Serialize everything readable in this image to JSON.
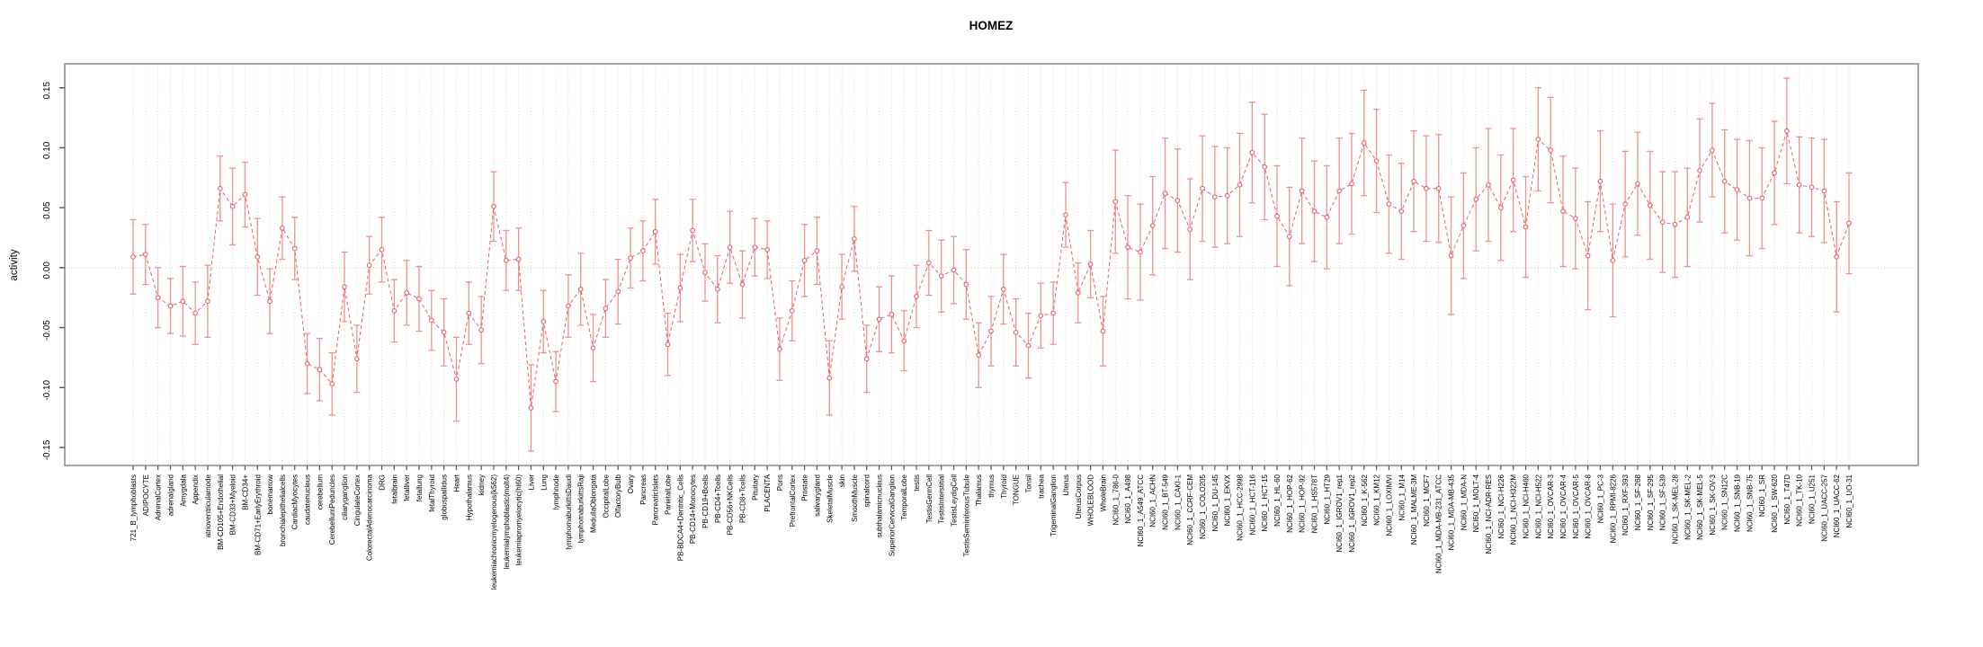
{
  "chart_data": {
    "type": "line",
    "title": "HOMEZ",
    "ylabel": "activity",
    "xlabel": "",
    "ylim": [
      -0.165,
      0.17
    ],
    "yticks": [
      -0.15,
      -0.1,
      -0.05,
      0.0,
      0.05,
      0.1,
      0.15
    ],
    "ytick_labels": [
      "-0.15",
      "-0.10",
      "-0.05",
      "0.00",
      "0.05",
      "0.10",
      "0.15"
    ],
    "grid": {
      "vertical_dotted_per_category": true,
      "dotted_zero_line": true
    },
    "legend": "none",
    "marker": "open-circle",
    "line_style": "dashed",
    "error_bars": true,
    "colors": {
      "series": "#ee5f5f",
      "error_bar": "#f0908f",
      "grid": "#d8d8d8",
      "zero_line": "#c9c9c9",
      "axis_box": "#909090",
      "tick": "#555555",
      "text": "#000000",
      "background": "#ffffff"
    },
    "categories": [
      "721_B_lymphoblasts",
      "ADIPOCYTE",
      "AdrenalCortex",
      "adrenalgland",
      "Amygdala",
      "Appendix",
      "atrioventricularnode",
      "BM-CD105+Endothelial",
      "BM-CD33+Myeloid",
      "BM-CD34+",
      "BM-CD71+EarlyErythroid",
      "bonemarrow",
      "bronchialepithelialcells",
      "CardiacMyocytes",
      "caudatenucleus",
      "cerebellum",
      "CerebellumPeduncles",
      "ciliaryganglion",
      "CingulateCortex",
      "ColorectalAdenocarcinoma",
      "DRG",
      "fetalbrain",
      "fetalliver",
      "fetallung",
      "fetalThyroid",
      "globuspallidus",
      "Heart",
      "Hypothalamus",
      "kidney",
      "leukemiachronicmyelogenous(k562)",
      "leukemialymphoblastic(molt4)",
      "leukemiapromyelocytic(hl60)",
      "Liver",
      "Lung",
      "lymphnode",
      "lymphomaburkittsDaudi",
      "lymphomaburkittsRaji",
      "MedullaOblongata",
      "OccipitalLobe",
      "OlfactoryBulb",
      "Ovary",
      "Pancreas",
      "PancreaticIslets",
      "ParietalLobe",
      "PB-BDCA4+Dentritic_Cells",
      "PB-CD14+Monocytes",
      "PB-CD19+Bcells",
      "PB-CD4+Tcells",
      "PB-CD56+NKCells",
      "PB-CD8+Tcells",
      "Pituitary",
      "PLACENTA",
      "Pons",
      "PrefrontalCortex",
      "Prostate",
      "salivarygland",
      "SkeletalMuscle",
      "skin",
      "SmoothMuscle",
      "spinalcord",
      "subthalamicnucleus",
      "SuperiorCervicalGanglion",
      "TemporalLobe",
      "testis",
      "TestisGermCell",
      "TestisInterstitial",
      "TestisLeydigCell",
      "TestisSeminiferousTubule",
      "Thalamus",
      "thymus",
      "Thyroid",
      "TONGUE",
      "Tonsil",
      "trachea",
      "TrigeminalGanglion",
      "Uterus",
      "UterusCorpus",
      "WHOLEBLOOD",
      "WholeBrain",
      "NCI60_1_786-0",
      "NCI60_1_A498",
      "NCI60_1_A549_ATCC",
      "NCI60_1_ACHN",
      "NCI60_1_BT-549",
      "NCI60_1_CAKI-1",
      "NCI60_1_CCRF-CEM",
      "NCI60_1_COLO205",
      "NCI60_1_DU-145",
      "NCI60_1_EKVX",
      "NCI60_1_HCC-2998",
      "NCI60_1_HCT-116",
      "NCI60_1_HCT-15",
      "NCI60_1_HL-60",
      "NCI60_1_HOP-62",
      "NCI60_1_HOP-92",
      "NCI60_1_HS578T",
      "NCI60_1_HT29",
      "NCI60_1_IGROV1_rep1",
      "NCI60_1_IGROV1_rep2",
      "NCI60_1_K-562",
      "NCI60_1_KM12",
      "NCI60_1_LOXIMVI",
      "NCI60_1_M14",
      "NCI60_1_MALME-3M",
      "NCI60_1_MCF7",
      "NCI60_1_MDA-MB-231_ATCC",
      "NCI60_1_MDA-MB-435",
      "NCI60_1_MDA-N",
      "NCI60_1_MOLT-4",
      "NCI60_1_NCI-ADR-RES",
      "NCI60_1_NCI-H226",
      "NCI60_1_NCI-H322M",
      "NCI60_1_NCI-H460",
      "NCI60_1_NCI-H522",
      "NCI60_1_OVCAR-3",
      "NCI60_1_OVCAR-4",
      "NCI60_1_OVCAR-5",
      "NCI60_1_OVCAR-8",
      "NCI60_1_PC-3",
      "NCI60_1_RPMI-8226",
      "NCI60_1_RXF-393",
      "NCI60_1_SF-268",
      "NCI60_1_SF-295",
      "NCI60_1_SF-539",
      "NCI60_1_SK-MEL-28",
      "NCI60_1_SK-MEL-2",
      "NCI60_1_SK-MEL-5",
      "NCI60_1_SK-OV-3",
      "NCI60_1_SN12C",
      "NCI60_1_SNB-19",
      "NCI60_1_SNB-75",
      "NCI60_1_SR",
      "NCI60_1_SW-620",
      "NCI60_1_T47D",
      "NCI60_1_TK-10",
      "NCI60_1_U251",
      "NCI60_1_UACC-257",
      "NCI60_1_UACC-62",
      "NCI60_1_UO-31"
    ],
    "series": [
      {
        "name": "activity",
        "values": [
          0.009,
          0.011,
          -0.025,
          -0.032,
          -0.028,
          -0.038,
          -0.028,
          0.066,
          0.051,
          0.061,
          0.009,
          -0.028,
          0.033,
          0.016,
          -0.08,
          -0.085,
          -0.097,
          -0.016,
          -0.076,
          0.002,
          0.015,
          -0.036,
          -0.021,
          -0.026,
          -0.044,
          -0.054,
          -0.093,
          -0.038,
          -0.052,
          0.051,
          0.006,
          0.007,
          -0.117,
          -0.045,
          -0.095,
          -0.032,
          -0.018,
          -0.067,
          -0.034,
          -0.02,
          0.008,
          0.014,
          0.03,
          -0.064,
          -0.017,
          0.031,
          -0.004,
          -0.018,
          0.017,
          -0.014,
          0.017,
          0.015,
          -0.068,
          -0.036,
          0.006,
          0.014,
          -0.092,
          -0.016,
          0.024,
          -0.076,
          -0.043,
          -0.039,
          -0.061,
          -0.024,
          0.004,
          -0.007,
          -0.002,
          -0.014,
          -0.073,
          -0.053,
          -0.018,
          -0.054,
          -0.065,
          -0.04,
          -0.038,
          0.044,
          -0.021,
          0.003,
          -0.053,
          0.055,
          0.017,
          0.013,
          0.035,
          0.062,
          0.056,
          0.032,
          0.066,
          0.059,
          0.06,
          0.069,
          0.096,
          0.084,
          0.043,
          0.026,
          0.064,
          0.047,
          0.042,
          0.064,
          0.07,
          0.104,
          0.089,
          0.053,
          0.047,
          0.072,
          0.066,
          0.066,
          0.01,
          0.035,
          0.057,
          0.069,
          0.05,
          0.073,
          0.034,
          0.107,
          0.098,
          0.047,
          0.041,
          0.01,
          0.072,
          0.006,
          0.053,
          0.07,
          0.052,
          0.038,
          0.036,
          0.042,
          0.081,
          0.098,
          0.072,
          0.065,
          0.058,
          0.058,
          0.079,
          0.114,
          0.069,
          0.067,
          0.064,
          0.009,
          0.037
        ],
        "errors": [
          0.031,
          0.025,
          0.025,
          0.023,
          0.029,
          0.026,
          0.03,
          0.027,
          0.032,
          0.027,
          0.032,
          0.027,
          0.026,
          0.026,
          0.025,
          0.026,
          0.026,
          0.029,
          0.028,
          0.024,
          0.027,
          0.026,
          0.027,
          0.027,
          0.025,
          0.028,
          0.035,
          0.026,
          0.028,
          0.029,
          0.025,
          0.026,
          0.036,
          0.026,
          0.025,
          0.026,
          0.03,
          0.028,
          0.024,
          0.027,
          0.025,
          0.025,
          0.027,
          0.026,
          0.028,
          0.026,
          0.024,
          0.028,
          0.03,
          0.028,
          0.024,
          0.024,
          0.026,
          0.025,
          0.03,
          0.028,
          0.031,
          0.027,
          0.027,
          0.028,
          0.027,
          0.032,
          0.025,
          0.026,
          0.027,
          0.03,
          0.028,
          0.029,
          0.027,
          0.029,
          0.029,
          0.028,
          0.027,
          0.027,
          0.026,
          0.027,
          0.025,
          0.028,
          0.029,
          0.043,
          0.043,
          0.04,
          0.041,
          0.046,
          0.043,
          0.042,
          0.044,
          0.042,
          0.04,
          0.043,
          0.042,
          0.044,
          0.042,
          0.041,
          0.044,
          0.042,
          0.043,
          0.044,
          0.042,
          0.044,
          0.043,
          0.041,
          0.04,
          0.042,
          0.044,
          0.045,
          0.049,
          0.044,
          0.043,
          0.047,
          0.044,
          0.043,
          0.042,
          0.043,
          0.044,
          0.046,
          0.042,
          0.045,
          0.042,
          0.047,
          0.044,
          0.043,
          0.045,
          0.042,
          0.044,
          0.041,
          0.043,
          0.039,
          0.043,
          0.042,
          0.048,
          0.042,
          0.043,
          0.044,
          0.04,
          0.041,
          0.043,
          0.046,
          0.042
        ]
      }
    ]
  }
}
